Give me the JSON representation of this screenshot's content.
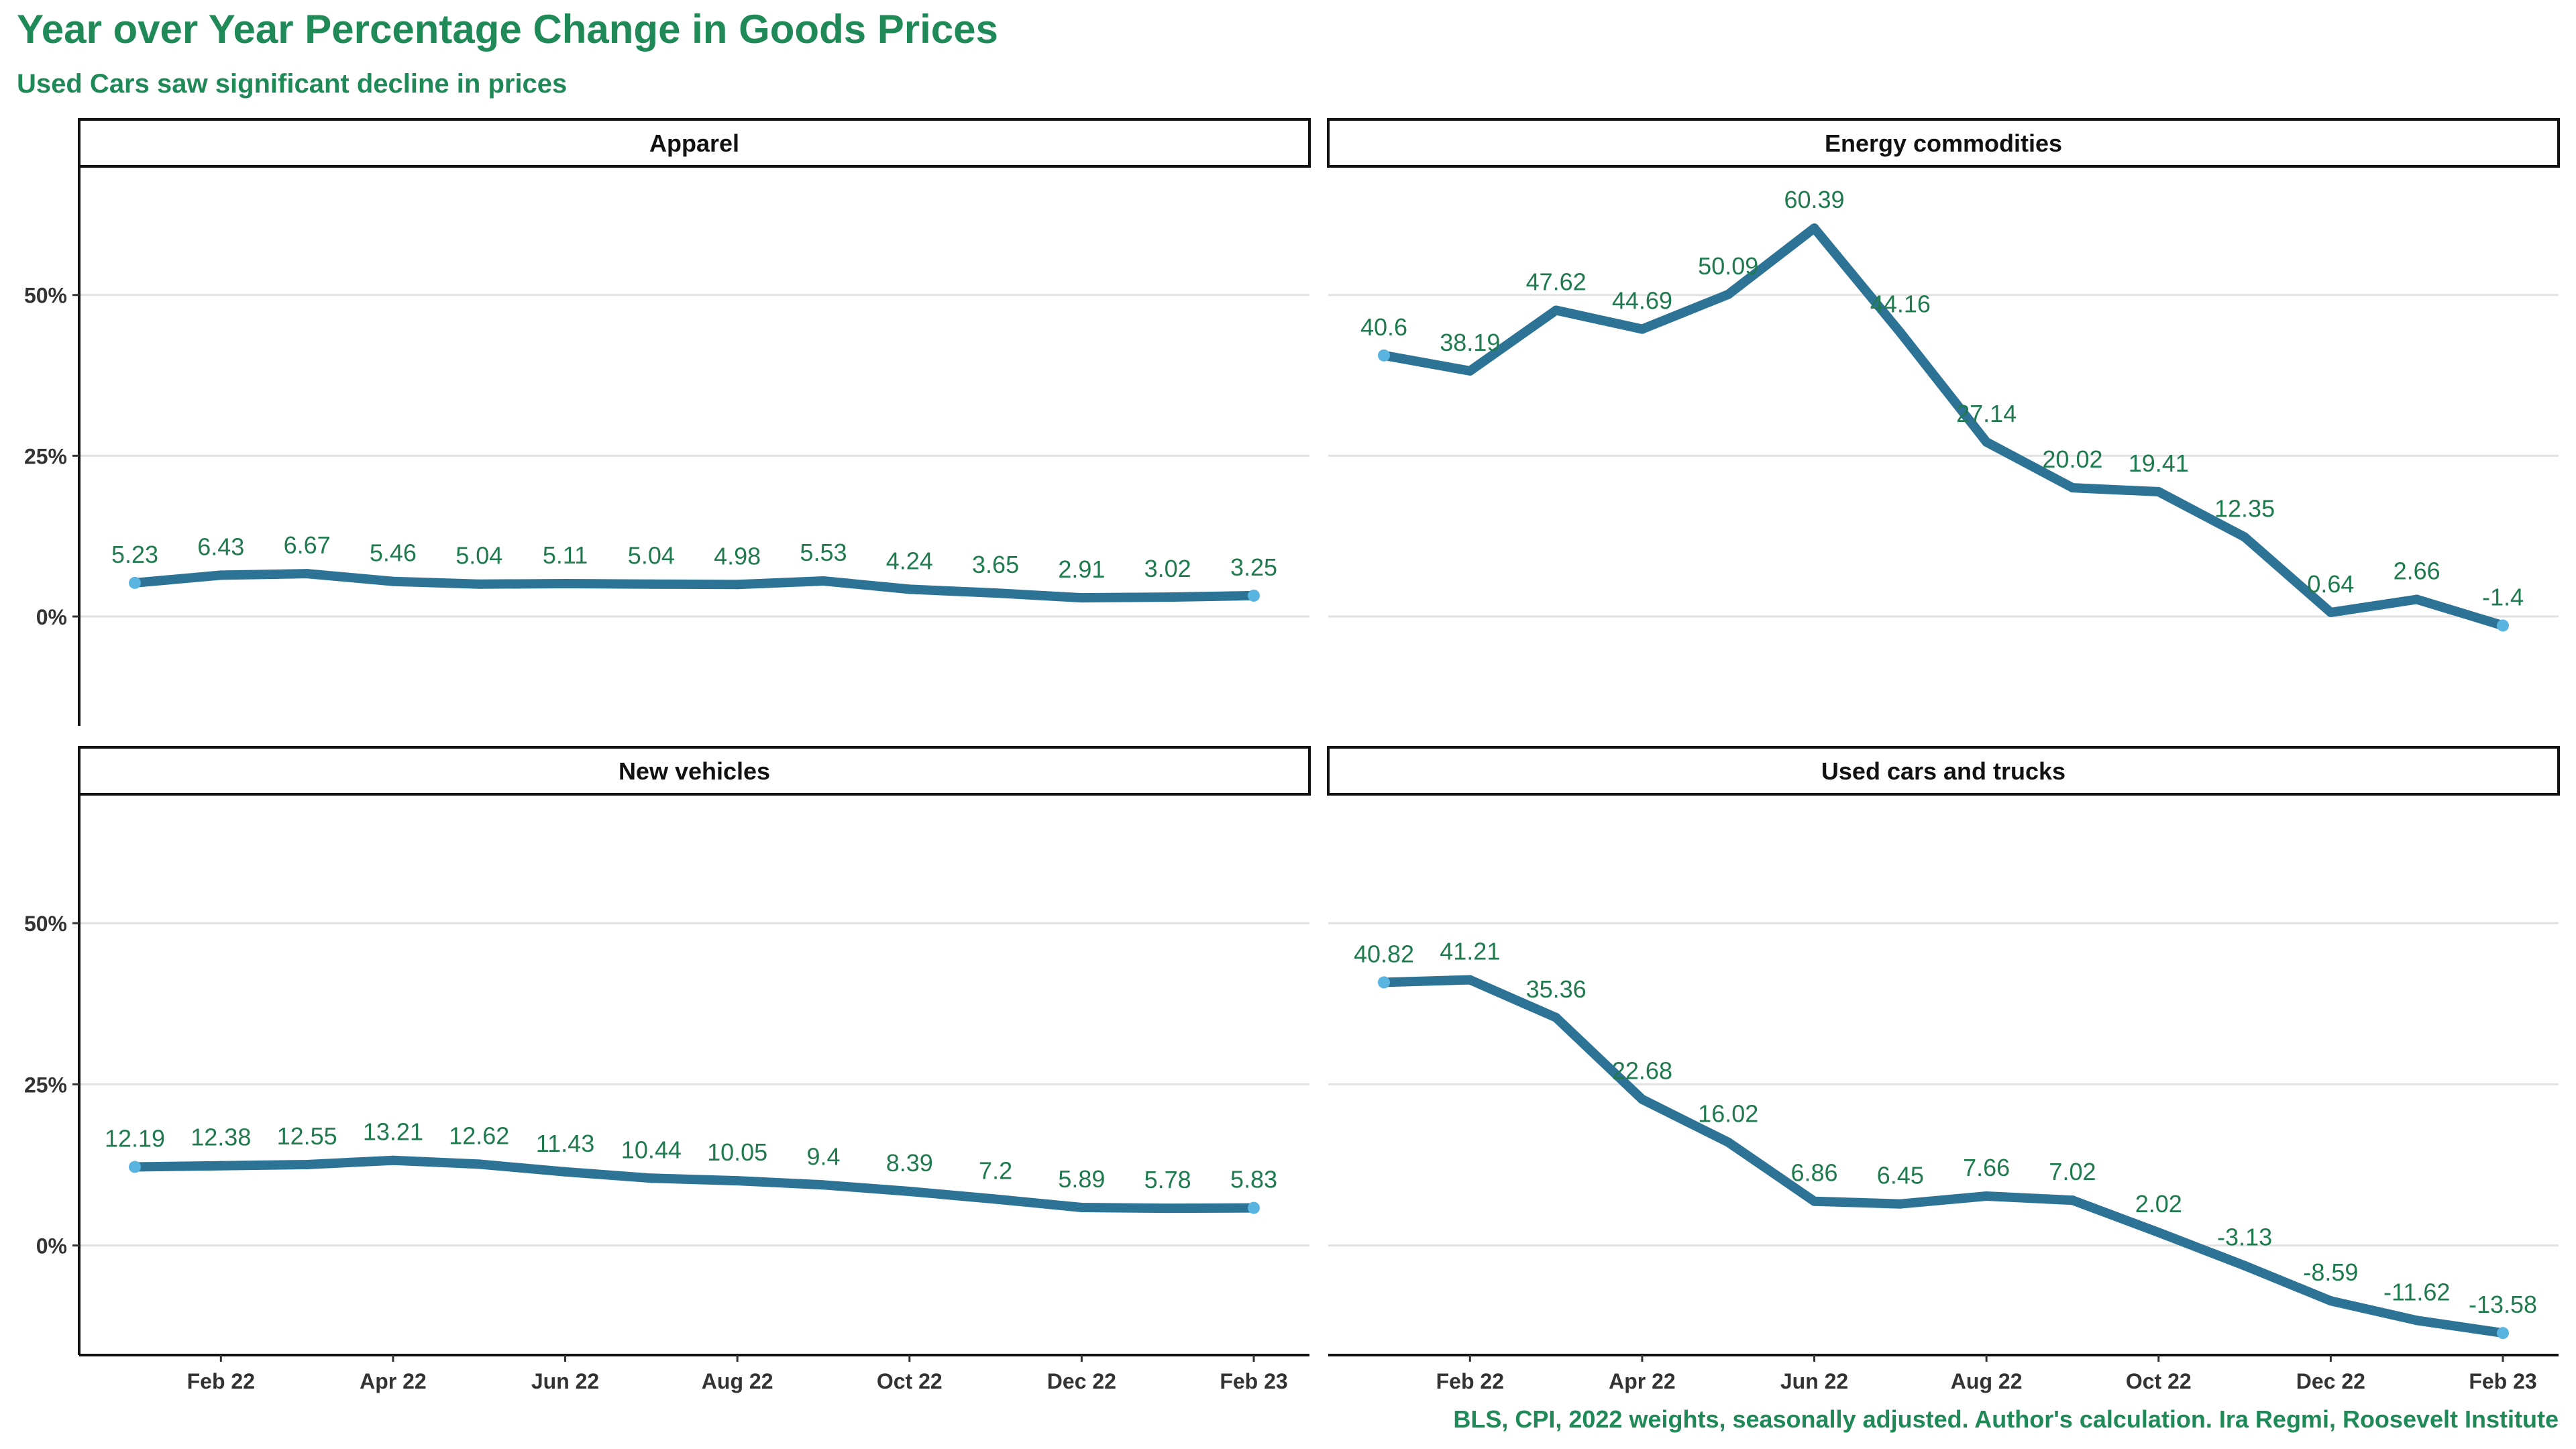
{
  "title": "Year over Year Percentage Change in  Goods Prices",
  "subtitle": "Used Cars saw significant decline in prices",
  "caption": "BLS, CPI, 2022 weights, seasonally adjusted. Author's calculation. Ira Regmi, Roosevelt Institute",
  "colors": {
    "title": "#1f8a57",
    "line": "#2d7396",
    "point": "#5ab4e0",
    "label": "#1f7a4e",
    "grid": "#e2e2e2"
  },
  "chart_data": {
    "type": "line",
    "layout": "facet-2x2",
    "x": [
      "Jan 22",
      "Feb 22",
      "Mar 22",
      "Apr 22",
      "May 22",
      "Jun 22",
      "Jul 22",
      "Aug 22",
      "Sep 22",
      "Oct 22",
      "Nov 22",
      "Dec 22",
      "Jan 23",
      "Feb 23"
    ],
    "x_tick_labels": [
      "Feb 22",
      "Apr 22",
      "Jun 22",
      "Aug 22",
      "Oct 22",
      "Dec 22",
      "Feb 23"
    ],
    "y_tick_labels": [
      "0%",
      "25%",
      "50%"
    ],
    "ylim": [
      -17,
      70
    ],
    "y_ticks": [
      0,
      25,
      50
    ],
    "grid": true,
    "facets": [
      {
        "name": "Apparel",
        "values": [
          5.23,
          6.43,
          6.67,
          5.46,
          5.04,
          5.11,
          5.04,
          4.98,
          5.53,
          4.24,
          3.65,
          2.91,
          3.02,
          3.25
        ]
      },
      {
        "name": "Energy commodities",
        "values": [
          40.6,
          38.19,
          47.62,
          44.69,
          50.09,
          60.39,
          44.16,
          27.14,
          20.02,
          19.41,
          12.35,
          0.64,
          2.66,
          -1.4
        ]
      },
      {
        "name": "New vehicles",
        "values": [
          12.19,
          12.38,
          12.55,
          13.21,
          12.62,
          11.43,
          10.44,
          10.05,
          9.4,
          8.39,
          7.2,
          5.89,
          5.78,
          5.83
        ]
      },
      {
        "name": "Used cars and trucks",
        "values": [
          40.82,
          41.21,
          35.36,
          22.68,
          16.02,
          6.86,
          6.45,
          7.66,
          7.02,
          2.02,
          -3.13,
          -8.59,
          -11.62,
          -13.58
        ]
      }
    ]
  }
}
